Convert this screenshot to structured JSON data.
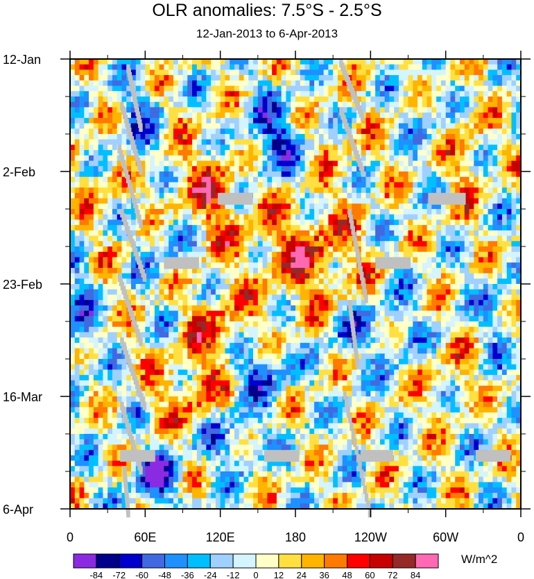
{
  "chart_data": {
    "type": "heatmap",
    "title": "OLR anomalies: 7.5°S - 2.5°S",
    "subtitle": "12-Jan-2013 to 6-Apr-2013",
    "x_ticks": [
      {
        "lon": 0,
        "label": "0"
      },
      {
        "lon": 60,
        "label": "60E"
      },
      {
        "lon": 120,
        "label": "120E"
      },
      {
        "lon": 180,
        "label": "180"
      },
      {
        "lon": 240,
        "label": "120W"
      },
      {
        "lon": 300,
        "label": "60W"
      },
      {
        "lon": 360,
        "label": "0"
      }
    ],
    "xlim": [
      0,
      360
    ],
    "y_ticks": [
      {
        "day": 0,
        "label": "12-Jan"
      },
      {
        "day": 21,
        "label": "2-Feb"
      },
      {
        "day": 42,
        "label": "23-Feb"
      },
      {
        "day": 63,
        "label": "16-Mar"
      },
      {
        "day": 84,
        "label": "6-Apr"
      }
    ],
    "ylim": [
      0,
      84
    ],
    "colorbar": {
      "unit": "W/m^2",
      "labels": [
        "-84",
        "-72",
        "-60",
        "-48",
        "-36",
        "-24",
        "-12",
        "0",
        "12",
        "24",
        "36",
        "48",
        "60",
        "72",
        "84"
      ],
      "colors": [
        "#8a2be2",
        "#00008b",
        "#0000cd",
        "#4169e1",
        "#1e90ff",
        "#00bfff",
        "#a0d0ff",
        "#d4f4ff",
        "#ffffc8",
        "#ffe040",
        "#ffb400",
        "#ff7a00",
        "#ff0000",
        "#c80000",
        "#962828",
        "#ff69b4"
      ]
    },
    "missing_color": "#c0c0c0"
  }
}
